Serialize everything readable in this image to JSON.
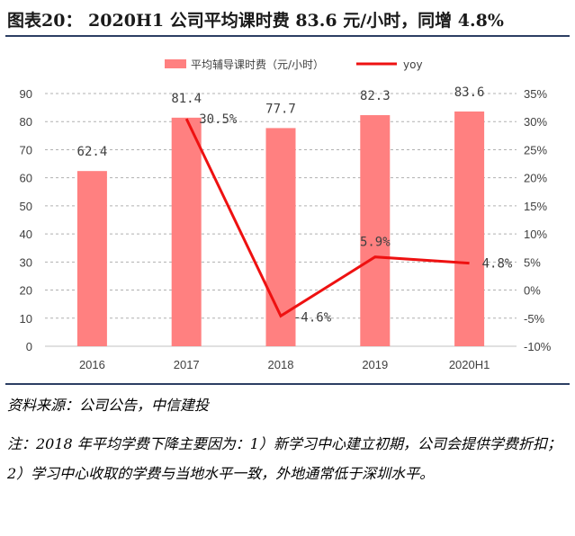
{
  "title": "图表20：  2020H1 公司平均课时费 83.6 元/小时，同增 4.8%",
  "source": "资料来源：公司公告，中信建投",
  "note": "注：2018 年平均学费下降主要因为：1）新学习中心建立初期，公司会提供学费折扣；2）学习中心收取的学费与当地水平一致，外地通常低于深圳水平。",
  "colors": {
    "bar": "#ff8080",
    "line": "#ee1111",
    "grid": "#b0b0b0",
    "rule": "#2c3e63"
  },
  "chart_data": {
    "type": "bar+line",
    "categories": [
      "2016",
      "2017",
      "2018",
      "2019",
      "2020H1"
    ],
    "series": [
      {
        "name": "平均辅导课时费（元/小时）",
        "type": "bar",
        "axis": "left",
        "values": [
          62.4,
          81.4,
          77.7,
          82.3,
          83.6
        ],
        "labels": [
          "62.4",
          "81.4",
          "77.7",
          "82.3",
          "83.6"
        ]
      },
      {
        "name": "yoy",
        "type": "line",
        "axis": "right",
        "values": [
          null,
          30.5,
          -4.6,
          5.9,
          4.8
        ],
        "labels": [
          "",
          "30.5%",
          "-4.6%",
          "5.9%",
          "4.8%"
        ]
      }
    ],
    "y_left": {
      "min": 0,
      "max": 90,
      "step": 10,
      "ticks": [
        "0",
        "10",
        "20",
        "30",
        "40",
        "50",
        "60",
        "70",
        "80",
        "90"
      ]
    },
    "y_right": {
      "min": -10,
      "max": 35,
      "step": 5,
      "ticks": [
        "-10%",
        "-5%",
        "0%",
        "5%",
        "10%",
        "15%",
        "20%",
        "25%",
        "30%",
        "35%"
      ]
    },
    "grid": "horizontal-dashed",
    "legend_position": "top"
  }
}
